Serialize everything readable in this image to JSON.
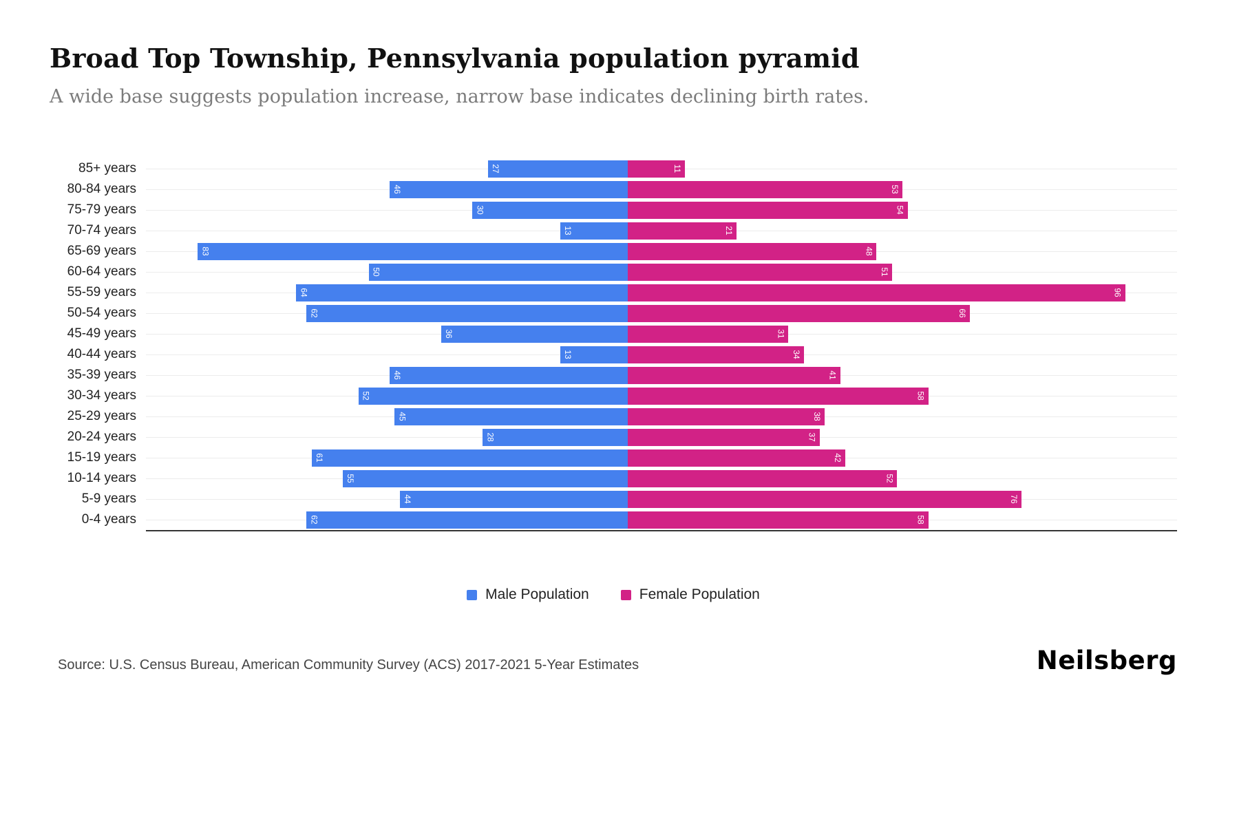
{
  "header": {
    "title": "Broad Top Township, Pennsylvania population pyramid",
    "subtitle": "A wide base suggests population increase, narrow base indicates declining birth rates."
  },
  "chart_data": {
    "type": "bar",
    "variant": "population-pyramid",
    "categories": [
      "85+ years",
      "80-84 years",
      "75-79 years",
      "70-74 years",
      "65-69 years",
      "60-64 years",
      "55-59 years",
      "50-54 years",
      "45-49 years",
      "40-44 years",
      "35-39 years",
      "30-34 years",
      "25-29 years",
      "20-24 years",
      "15-19 years",
      "10-14 years",
      "5-9 years",
      "0-4 years"
    ],
    "series": [
      {
        "name": "Male Population",
        "color": "#4580ee",
        "values": [
          27,
          46,
          30,
          13,
          83,
          50,
          64,
          62,
          36,
          13,
          46,
          52,
          45,
          28,
          61,
          55,
          44,
          62
        ]
      },
      {
        "name": "Female Population",
        "color": "#d22286",
        "values": [
          11,
          53,
          54,
          21,
          48,
          51,
          96,
          66,
          31,
          34,
          41,
          58,
          38,
          37,
          42,
          52,
          76,
          58
        ]
      }
    ],
    "axis": {
      "left_units": 93,
      "right_units": 106
    },
    "legend_position": "bottom",
    "grid": "horizontal-light",
    "value_labels": "inside-outer-end-rotated"
  },
  "footer": {
    "source": "Source: U.S. Census Bureau, American Community Survey (ACS) 2017-2021 5-Year Estimates",
    "brand": "Neilsberg"
  }
}
